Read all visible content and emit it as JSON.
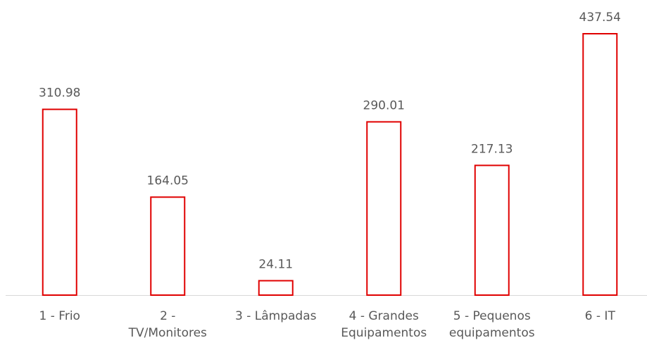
{
  "chart_data": {
    "type": "bar",
    "categories": [
      "1 - Frio",
      "2 - TV/Monitores",
      "3 - Lâmpadas",
      "4 - Grandes Equipamentos",
      "5 - Pequenos equipamentos",
      "6 - IT"
    ],
    "values": [
      310.98,
      164.05,
      24.11,
      290.01,
      217.13,
      437.54
    ],
    "color": "#e00000"
  }
}
